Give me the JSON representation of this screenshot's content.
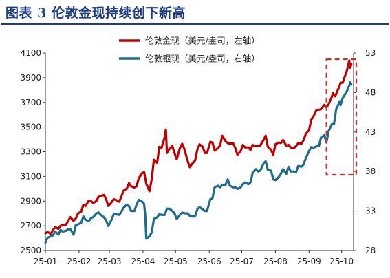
{
  "header": {
    "title": "图表 3  伦敦金现持续创下新高"
  },
  "chart_data": {
    "type": "line",
    "title": "图表 3  伦敦金现持续创下新高",
    "x_ticks": [
      "25-01",
      "25-02",
      "25-03",
      "25-04",
      "25-05",
      "25-06",
      "25-07",
      "25-08",
      "25-09",
      "25-10"
    ],
    "y_left": {
      "min": 2500,
      "max": 4100,
      "ticks": [
        2500,
        2700,
        2900,
        3100,
        3300,
        3500,
        3700,
        3900,
        4100
      ]
    },
    "y_right": {
      "min": 28,
      "max": 53,
      "ticks": [
        28,
        33,
        38,
        43,
        48,
        53
      ]
    },
    "legend_position": "top-center",
    "grid": false,
    "highlight_box": {
      "x_from": "2025-10-01",
      "x_to": "2025-10-10",
      "style": "dashed",
      "color": "#d62b2b"
    },
    "series": [
      {
        "name": "伦敦金现（美元/盎司，左轴）",
        "axis": "left",
        "color": "#c00000",
        "points": [
          [
            "2025-01-01",
            2640
          ],
          [
            "2025-01-03",
            2650
          ],
          [
            "2025-01-06",
            2635
          ],
          [
            "2025-01-08",
            2665
          ],
          [
            "2025-01-10",
            2690
          ],
          [
            "2025-01-13",
            2675
          ],
          [
            "2025-01-15",
            2700
          ],
          [
            "2025-01-17",
            2705
          ],
          [
            "2025-01-20",
            2710
          ],
          [
            "2025-01-22",
            2740
          ],
          [
            "2025-01-24",
            2770
          ],
          [
            "2025-01-27",
            2740
          ],
          [
            "2025-01-29",
            2760
          ],
          [
            "2025-01-31",
            2800
          ],
          [
            "2025-02-03",
            2815
          ],
          [
            "2025-02-05",
            2870
          ],
          [
            "2025-02-07",
            2860
          ],
          [
            "2025-02-10",
            2905
          ],
          [
            "2025-02-12",
            2900
          ],
          [
            "2025-02-14",
            2885
          ],
          [
            "2025-02-17",
            2900
          ],
          [
            "2025-02-19",
            2935
          ],
          [
            "2025-02-21",
            2940
          ],
          [
            "2025-02-24",
            2950
          ],
          [
            "2025-02-26",
            2915
          ],
          [
            "2025-02-28",
            2860
          ],
          [
            "2025-03-03",
            2890
          ],
          [
            "2025-03-05",
            2915
          ],
          [
            "2025-03-07",
            2910
          ],
          [
            "2025-03-10",
            2895
          ],
          [
            "2025-03-12",
            2935
          ],
          [
            "2025-03-14",
            2985
          ],
          [
            "2025-03-17",
            3000
          ],
          [
            "2025-03-19",
            3045
          ],
          [
            "2025-03-21",
            3020
          ],
          [
            "2025-03-24",
            3010
          ],
          [
            "2025-03-26",
            3020
          ],
          [
            "2025-03-28",
            3085
          ],
          [
            "2025-03-31",
            3125
          ],
          [
            "2025-04-02",
            3135
          ],
          [
            "2025-04-04",
            3040
          ],
          [
            "2025-04-07",
            2980
          ],
          [
            "2025-04-09",
            3080
          ],
          [
            "2025-04-11",
            3235
          ],
          [
            "2025-04-14",
            3210
          ],
          [
            "2025-04-16",
            3340
          ],
          [
            "2025-04-18",
            3330
          ],
          [
            "2025-04-21",
            3420
          ],
          [
            "2025-04-22",
            3480
          ],
          [
            "2025-04-23",
            3290
          ],
          [
            "2025-04-25",
            3320
          ],
          [
            "2025-04-28",
            3345
          ],
          [
            "2025-04-30",
            3290
          ],
          [
            "2025-05-02",
            3240
          ],
          [
            "2025-05-05",
            3330
          ],
          [
            "2025-05-07",
            3365
          ],
          [
            "2025-05-09",
            3325
          ],
          [
            "2025-05-12",
            3230
          ],
          [
            "2025-05-14",
            3175
          ],
          [
            "2025-05-16",
            3200
          ],
          [
            "2025-05-19",
            3230
          ],
          [
            "2025-05-21",
            3315
          ],
          [
            "2025-05-23",
            3360
          ],
          [
            "2025-05-26",
            3340
          ],
          [
            "2025-05-28",
            3290
          ],
          [
            "2025-05-30",
            3290
          ],
          [
            "2025-06-02",
            3380
          ],
          [
            "2025-06-04",
            3375
          ],
          [
            "2025-06-06",
            3310
          ],
          [
            "2025-06-09",
            3330
          ],
          [
            "2025-06-11",
            3350
          ],
          [
            "2025-06-13",
            3430
          ],
          [
            "2025-06-16",
            3385
          ],
          [
            "2025-06-18",
            3370
          ],
          [
            "2025-06-20",
            3365
          ],
          [
            "2025-06-23",
            3370
          ],
          [
            "2025-06-25",
            3330
          ],
          [
            "2025-06-27",
            3275
          ],
          [
            "2025-06-30",
            3305
          ],
          [
            "2025-07-02",
            3355
          ],
          [
            "2025-07-04",
            3335
          ],
          [
            "2025-07-07",
            3335
          ],
          [
            "2025-07-09",
            3315
          ],
          [
            "2025-07-11",
            3355
          ],
          [
            "2025-07-14",
            3345
          ],
          [
            "2025-07-16",
            3345
          ],
          [
            "2025-07-18",
            3350
          ],
          [
            "2025-07-21",
            3395
          ],
          [
            "2025-07-23",
            3430
          ],
          [
            "2025-07-25",
            3340
          ],
          [
            "2025-07-28",
            3315
          ],
          [
            "2025-07-30",
            3275
          ],
          [
            "2025-08-01",
            3360
          ],
          [
            "2025-08-04",
            3375
          ],
          [
            "2025-08-06",
            3370
          ],
          [
            "2025-08-08",
            3395
          ],
          [
            "2025-08-11",
            3350
          ],
          [
            "2025-08-13",
            3355
          ],
          [
            "2025-08-15",
            3335
          ],
          [
            "2025-08-18",
            3330
          ],
          [
            "2025-08-20",
            3345
          ],
          [
            "2025-08-22",
            3370
          ],
          [
            "2025-08-25",
            3365
          ],
          [
            "2025-08-27",
            3395
          ],
          [
            "2025-08-29",
            3445
          ],
          [
            "2025-09-01",
            3475
          ],
          [
            "2025-09-03",
            3560
          ],
          [
            "2025-09-05",
            3585
          ],
          [
            "2025-09-08",
            3640
          ],
          [
            "2025-09-10",
            3640
          ],
          [
            "2025-09-12",
            3645
          ],
          [
            "2025-09-15",
            3680
          ],
          [
            "2025-09-17",
            3660
          ],
          [
            "2025-09-19",
            3685
          ],
          [
            "2025-09-22",
            3745
          ],
          [
            "2025-09-23",
            3775
          ],
          [
            "2025-09-25",
            3750
          ],
          [
            "2025-09-29",
            3830
          ],
          [
            "2025-09-30",
            3860
          ],
          [
            "2025-10-02",
            3860
          ],
          [
            "2025-10-06",
            3960
          ],
          [
            "2025-10-08",
            4040
          ],
          [
            "2025-10-09",
            3980
          ],
          [
            "2025-10-10",
            4010
          ]
        ]
      },
      {
        "name": "伦敦银现（美元/盎司，右轴）",
        "axis": "right",
        "color": "#1f6b8c",
        "points": [
          [
            "2025-01-01",
            29.0
          ],
          [
            "2025-01-03",
            29.6
          ],
          [
            "2025-01-06",
            29.8
          ],
          [
            "2025-01-08",
            29.9
          ],
          [
            "2025-01-10",
            30.4
          ],
          [
            "2025-01-13",
            30.0
          ],
          [
            "2025-01-15",
            30.6
          ],
          [
            "2025-01-17",
            30.4
          ],
          [
            "2025-01-20",
            30.5
          ],
          [
            "2025-01-22",
            30.7
          ],
          [
            "2025-01-24",
            30.7
          ],
          [
            "2025-01-27",
            30.0
          ],
          [
            "2025-01-29",
            31.2
          ],
          [
            "2025-01-31",
            31.3
          ],
          [
            "2025-02-03",
            31.5
          ],
          [
            "2025-02-05",
            32.3
          ],
          [
            "2025-02-07",
            31.9
          ],
          [
            "2025-02-10",
            31.7
          ],
          [
            "2025-02-12",
            32.1
          ],
          [
            "2025-02-14",
            32.2
          ],
          [
            "2025-02-17",
            32.7
          ],
          [
            "2025-02-19",
            32.8
          ],
          [
            "2025-02-21",
            32.5
          ],
          [
            "2025-02-24",
            32.2
          ],
          [
            "2025-02-26",
            31.8
          ],
          [
            "2025-02-28",
            31.1
          ],
          [
            "2025-03-03",
            31.9
          ],
          [
            "2025-03-05",
            32.6
          ],
          [
            "2025-03-07",
            32.6
          ],
          [
            "2025-03-10",
            32.5
          ],
          [
            "2025-03-12",
            32.9
          ],
          [
            "2025-03-14",
            33.4
          ],
          [
            "2025-03-17",
            33.8
          ],
          [
            "2025-03-19",
            33.6
          ],
          [
            "2025-03-21",
            33.0
          ],
          [
            "2025-03-24",
            33.0
          ],
          [
            "2025-03-26",
            33.8
          ],
          [
            "2025-03-28",
            34.4
          ],
          [
            "2025-03-31",
            34.2
          ],
          [
            "2025-04-02",
            33.9
          ],
          [
            "2025-04-03",
            32.5
          ],
          [
            "2025-04-04",
            29.5
          ],
          [
            "2025-04-07",
            29.8
          ],
          [
            "2025-04-09",
            30.3
          ],
          [
            "2025-04-11",
            32.0
          ],
          [
            "2025-04-14",
            32.2
          ],
          [
            "2025-04-16",
            32.6
          ],
          [
            "2025-04-18",
            32.5
          ],
          [
            "2025-04-21",
            32.5
          ],
          [
            "2025-04-23",
            33.3
          ],
          [
            "2025-04-25",
            33.3
          ],
          [
            "2025-04-28",
            33.0
          ],
          [
            "2025-04-30",
            32.7
          ],
          [
            "2025-05-02",
            32.0
          ],
          [
            "2025-05-05",
            32.5
          ],
          [
            "2025-05-07",
            32.8
          ],
          [
            "2025-05-09",
            32.7
          ],
          [
            "2025-05-12",
            32.7
          ],
          [
            "2025-05-14",
            32.4
          ],
          [
            "2025-05-16",
            32.3
          ],
          [
            "2025-05-19",
            32.3
          ],
          [
            "2025-05-21",
            33.2
          ],
          [
            "2025-05-23",
            33.5
          ],
          [
            "2025-05-26",
            33.2
          ],
          [
            "2025-05-28",
            33.0
          ],
          [
            "2025-05-30",
            33.0
          ],
          [
            "2025-06-02",
            34.5
          ],
          [
            "2025-06-04",
            34.6
          ],
          [
            "2025-06-06",
            36.0
          ],
          [
            "2025-06-09",
            36.2
          ],
          [
            "2025-06-11",
            36.0
          ],
          [
            "2025-06-13",
            36.3
          ],
          [
            "2025-06-16",
            36.3
          ],
          [
            "2025-06-18",
            37.0
          ],
          [
            "2025-06-20",
            36.2
          ],
          [
            "2025-06-23",
            36.0
          ],
          [
            "2025-06-25",
            36.0
          ],
          [
            "2025-06-27",
            35.8
          ],
          [
            "2025-06-30",
            36.0
          ],
          [
            "2025-07-02",
            36.4
          ],
          [
            "2025-07-04",
            36.6
          ],
          [
            "2025-07-07",
            36.4
          ],
          [
            "2025-07-09",
            36.6
          ],
          [
            "2025-07-11",
            37.8
          ],
          [
            "2025-07-14",
            38.3
          ],
          [
            "2025-07-16",
            38.0
          ],
          [
            "2025-07-18",
            38.1
          ],
          [
            "2025-07-21",
            39.0
          ],
          [
            "2025-07-23",
            39.3
          ],
          [
            "2025-07-25",
            38.2
          ],
          [
            "2025-07-28",
            38.1
          ],
          [
            "2025-07-30",
            37.0
          ],
          [
            "2025-08-01",
            36.9
          ],
          [
            "2025-08-04",
            37.3
          ],
          [
            "2025-08-06",
            37.7
          ],
          [
            "2025-08-08",
            38.3
          ],
          [
            "2025-08-11",
            37.7
          ],
          [
            "2025-08-13",
            38.6
          ],
          [
            "2025-08-15",
            38.0
          ],
          [
            "2025-08-18",
            38.0
          ],
          [
            "2025-08-20",
            37.9
          ],
          [
            "2025-08-22",
            38.7
          ],
          [
            "2025-08-25",
            38.6
          ],
          [
            "2025-08-27",
            38.9
          ],
          [
            "2025-08-29",
            39.7
          ],
          [
            "2025-09-01",
            40.6
          ],
          [
            "2025-09-03",
            41.1
          ],
          [
            "2025-09-05",
            41.0
          ],
          [
            "2025-09-08",
            41.2
          ],
          [
            "2025-09-10",
            41.2
          ],
          [
            "2025-09-12",
            42.3
          ],
          [
            "2025-09-15",
            42.6
          ],
          [
            "2025-09-17",
            41.7
          ],
          [
            "2025-09-19",
            43.1
          ],
          [
            "2025-09-22",
            44.0
          ],
          [
            "2025-09-24",
            44.0
          ],
          [
            "2025-09-26",
            45.9
          ],
          [
            "2025-09-29",
            46.8
          ],
          [
            "2025-09-30",
            46.4
          ],
          [
            "2025-10-02",
            47.3
          ],
          [
            "2025-10-06",
            48.2
          ],
          [
            "2025-10-08",
            48.9
          ],
          [
            "2025-10-09",
            49.3
          ],
          [
            "2025-10-10",
            49.0
          ]
        ]
      }
    ]
  }
}
